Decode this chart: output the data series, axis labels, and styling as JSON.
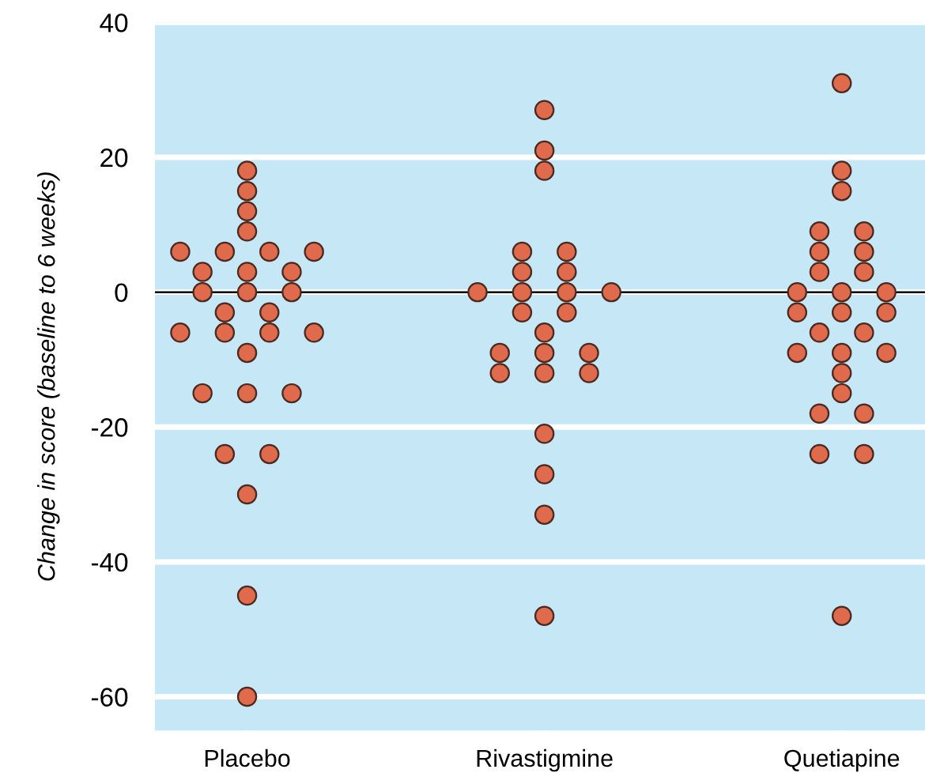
{
  "chart_data": {
    "type": "scatter",
    "ylabel": "Change in score (baseline to 6 weeks)",
    "categories": [
      "Placebo",
      "Rivastigmine",
      "Quetiapine"
    ],
    "series": [
      {
        "color": "#e06a4c",
        "x": [
          "Placebo",
          "Placebo",
          "Placebo",
          "Placebo",
          "Placebo",
          "Placebo",
          "Placebo",
          "Placebo",
          "Placebo",
          "Placebo",
          "Placebo",
          "Placebo",
          "Placebo",
          "Placebo",
          "Placebo",
          "Placebo",
          "Placebo",
          "Placebo",
          "Placebo",
          "Placebo",
          "Placebo",
          "Placebo",
          "Placebo",
          "Placebo",
          "Placebo",
          "Placebo",
          "Placebo",
          "Placebo",
          "Placebo",
          "Rivastigmine",
          "Rivastigmine",
          "Rivastigmine",
          "Rivastigmine",
          "Rivastigmine",
          "Rivastigmine",
          "Rivastigmine",
          "Rivastigmine",
          "Rivastigmine",
          "Rivastigmine",
          "Rivastigmine",
          "Rivastigmine",
          "Rivastigmine",
          "Rivastigmine",
          "Rivastigmine",
          "Rivastigmine",
          "Rivastigmine",
          "Rivastigmine",
          "Rivastigmine",
          "Rivastigmine",
          "Rivastigmine",
          "Rivastigmine",
          "Rivastigmine",
          "Rivastigmine",
          "Quetiapine",
          "Quetiapine",
          "Quetiapine",
          "Quetiapine",
          "Quetiapine",
          "Quetiapine",
          "Quetiapine",
          "Quetiapine",
          "Quetiapine",
          "Quetiapine",
          "Quetiapine",
          "Quetiapine",
          "Quetiapine",
          "Quetiapine",
          "Quetiapine",
          "Quetiapine",
          "Quetiapine",
          "Quetiapine",
          "Quetiapine",
          "Quetiapine",
          "Quetiapine",
          "Quetiapine",
          "Quetiapine",
          "Quetiapine",
          "Quetiapine",
          "Quetiapine",
          "Quetiapine"
        ],
        "values": [
          18,
          15,
          12,
          9,
          6,
          6,
          6,
          6,
          3,
          3,
          3,
          0,
          0,
          0,
          -3,
          -3,
          -6,
          -6,
          -6,
          -6,
          -9,
          -15,
          -15,
          -15,
          -24,
          -24,
          -30,
          -45,
          -60,
          27,
          21,
          18,
          6,
          6,
          3,
          3,
          0,
          0,
          0,
          0,
          -3,
          -3,
          -6,
          -9,
          -9,
          -9,
          -12,
          -12,
          -12,
          -21,
          -27,
          -33,
          -48,
          31,
          18,
          15,
          9,
          9,
          6,
          6,
          3,
          3,
          0,
          0,
          0,
          -3,
          -3,
          -3,
          -6,
          -6,
          -9,
          -9,
          -9,
          -12,
          -15,
          -18,
          -18,
          -24,
          -24,
          -48
        ]
      }
    ],
    "ylim": [
      -65,
      40
    ],
    "yticks": [
      -60,
      -40,
      -20,
      0,
      20,
      40
    ],
    "grid": "y",
    "marker": "circle",
    "ref_lines": [
      {
        "axis": "y",
        "value": 0,
        "color": "#000000"
      }
    ]
  }
}
